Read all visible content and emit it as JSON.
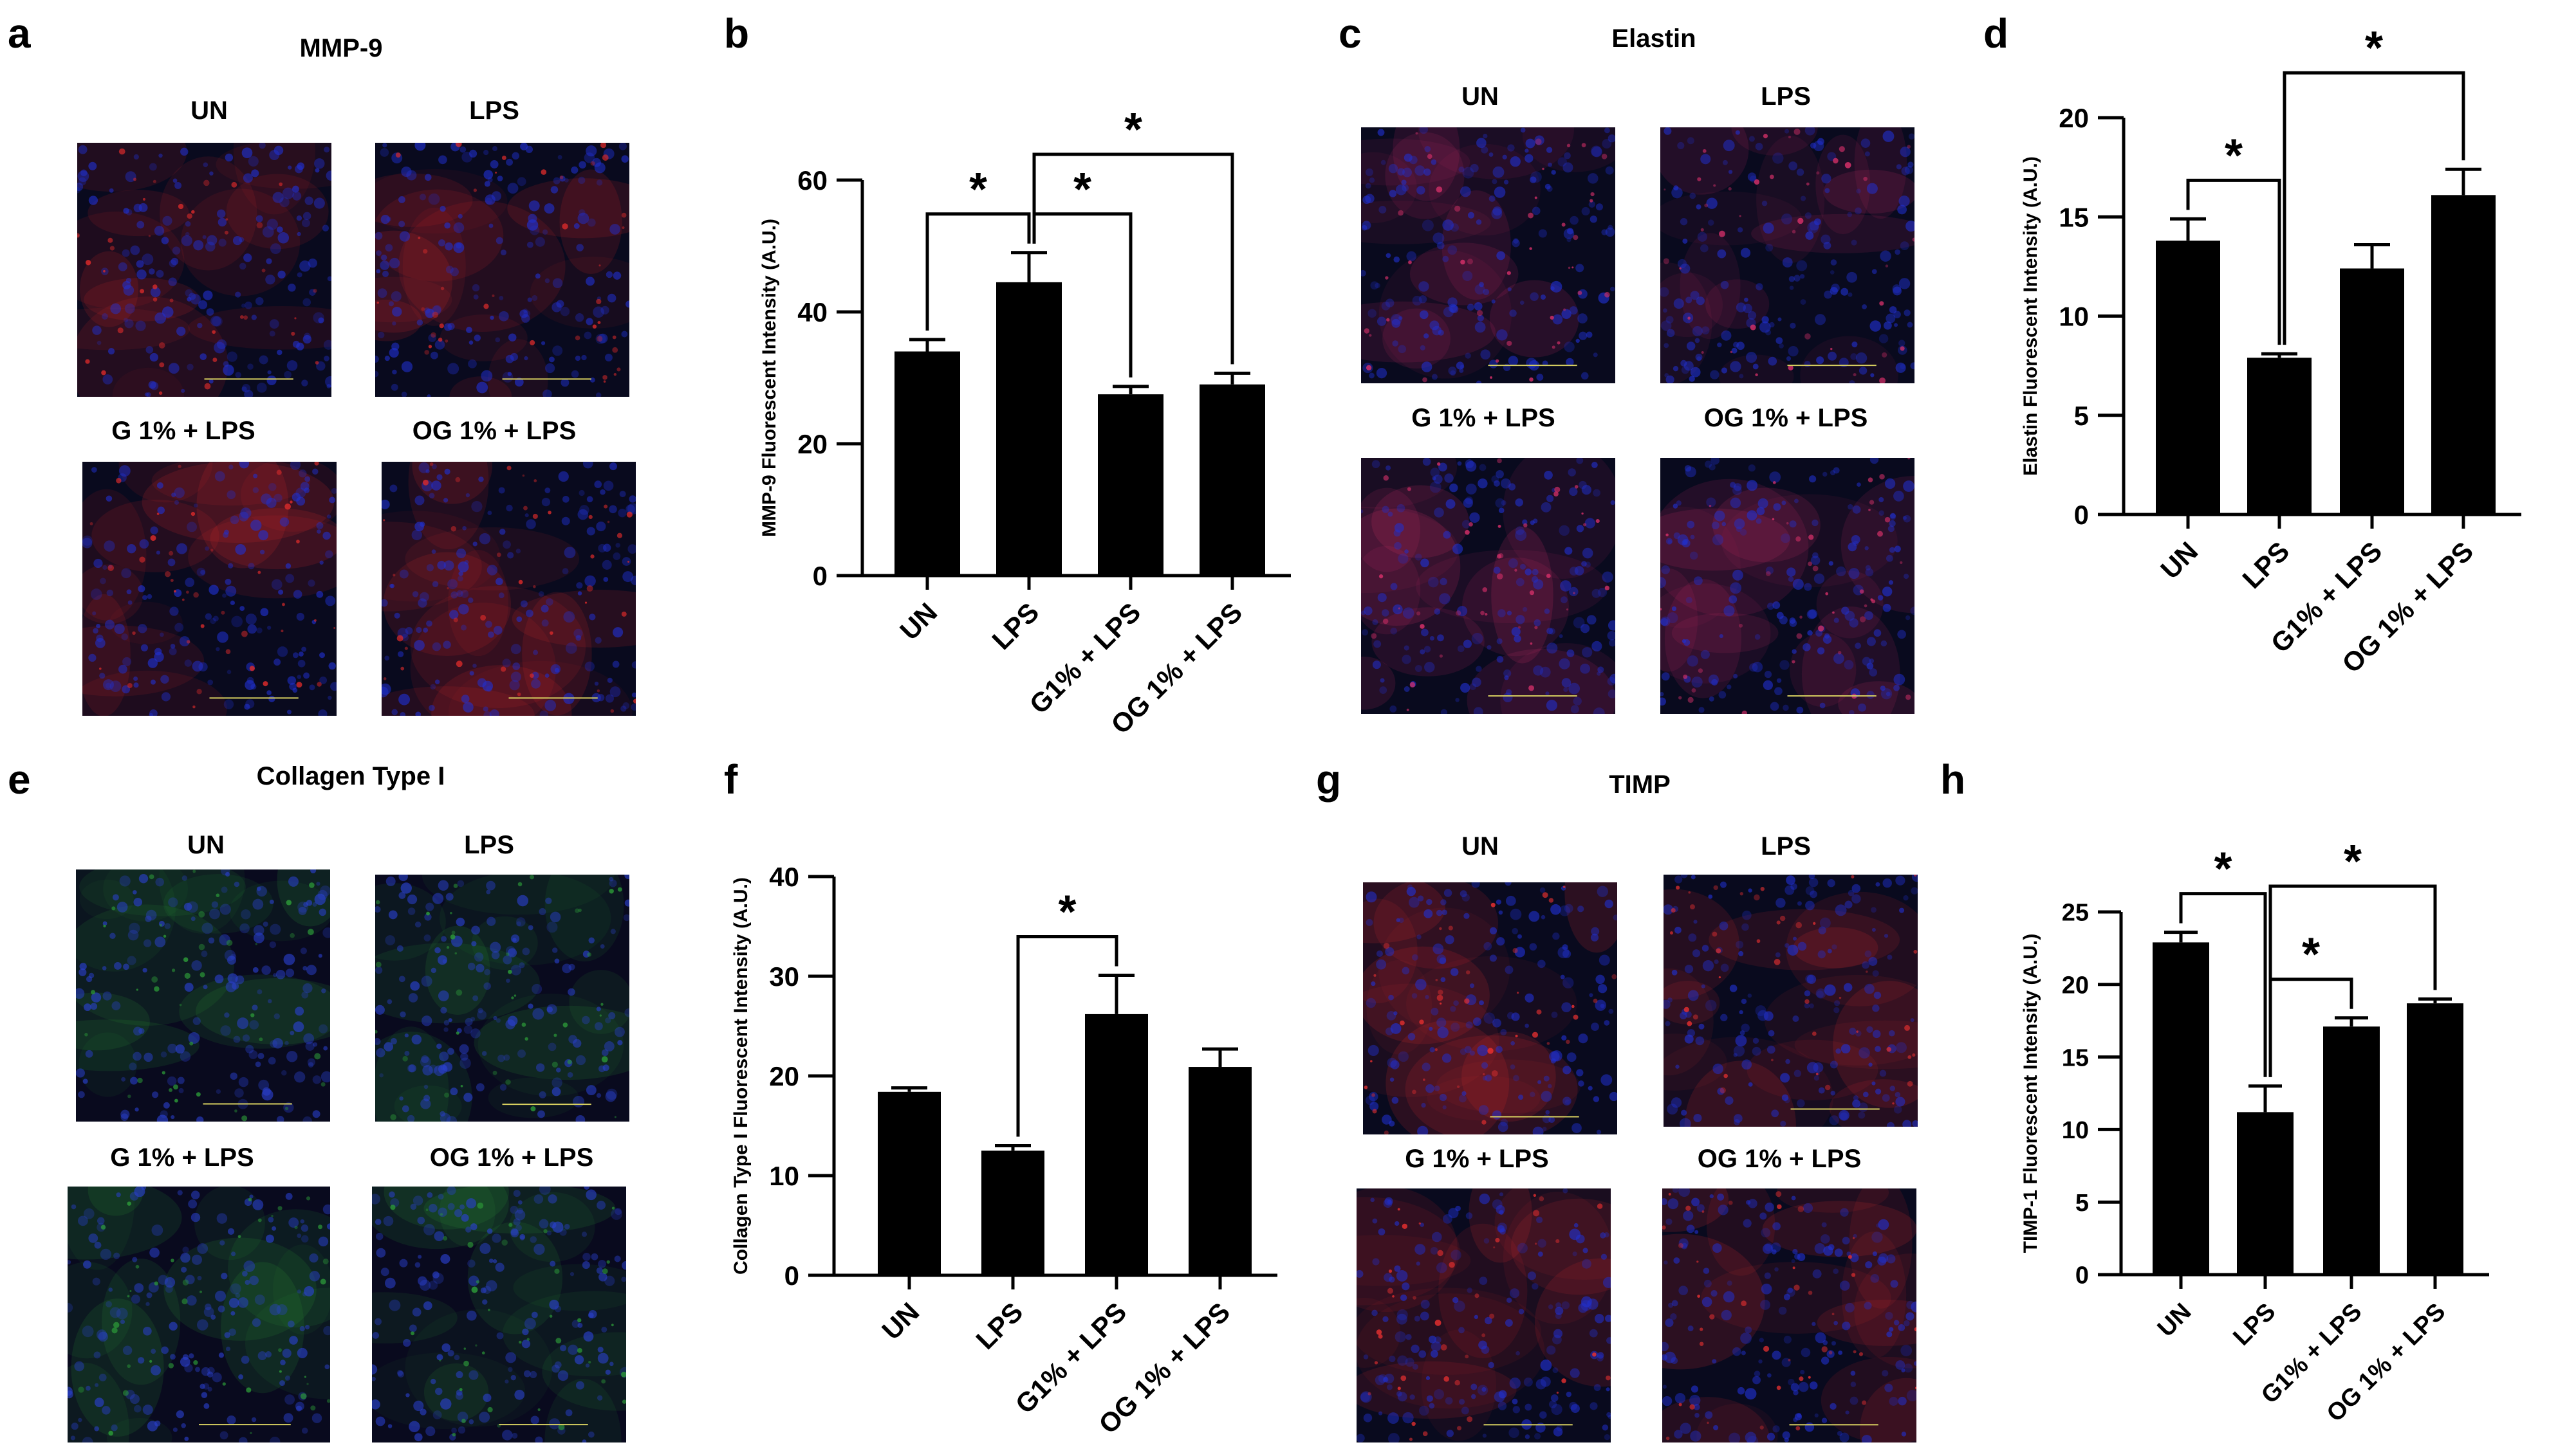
{
  "panels": [
    {
      "letter": "a",
      "title": "MMP-9",
      "image_labels": [
        "UN",
        "LPS",
        "G 1% + LPS",
        "OG 1% + LPS"
      ],
      "stain_colors": [
        "#d92a2a",
        "#2030d0"
      ]
    },
    {
      "letter": "b"
    },
    {
      "letter": "c",
      "title": "Elastin",
      "image_labels": [
        "UN",
        "LPS",
        "G 1% + LPS",
        "OG 1% + LPS"
      ],
      "stain_colors": [
        "#d8306a",
        "#2030d0"
      ]
    },
    {
      "letter": "d"
    },
    {
      "letter": "e",
      "title": "Collagen Type I",
      "image_labels": [
        "UN",
        "LPS",
        "G 1% + LPS",
        "OG 1% + LPS"
      ],
      "stain_colors": [
        "#2c9a38",
        "#2a40d0"
      ]
    },
    {
      "letter": "f"
    },
    {
      "letter": "g",
      "title": "TIMP",
      "image_labels": [
        "UN",
        "LPS",
        "G 1% + LPS",
        "OG 1% + LPS"
      ],
      "stain_colors": [
        "#e83030",
        "#2030d0"
      ]
    },
    {
      "letter": "h"
    }
  ],
  "chart_data": [
    {
      "type": "bar",
      "ylabel": "MMP-9 Fluorescent Intensity (A.U.)",
      "categories": [
        "UN",
        "LPS",
        "G1% + LPS",
        "OG 1% + LPS"
      ],
      "values": [
        34,
        44.5,
        27.5,
        29
      ],
      "errors": [
        1.8,
        4.5,
        1.2,
        1.7
      ],
      "ylim": [
        0,
        60
      ],
      "yticks": [
        0,
        20,
        40,
        60
      ],
      "significance": [
        {
          "from": 0,
          "to": 1,
          "label": "*"
        },
        {
          "from": 1,
          "to": 2,
          "label": "*"
        },
        {
          "from": 1,
          "to": 3,
          "label": "*"
        }
      ]
    },
    {
      "type": "bar",
      "ylabel": "Elastin Fluorescent Intensity (A.U.)",
      "categories": [
        "UN",
        "LPS",
        "G1% + LPS",
        "OG 1% + LPS"
      ],
      "values": [
        13.8,
        7.9,
        12.4,
        16.1
      ],
      "errors": [
        1.1,
        0.2,
        1.2,
        1.3
      ],
      "ylim": [
        0,
        20
      ],
      "yticks": [
        0,
        5,
        10,
        15,
        20
      ],
      "significance": [
        {
          "from": 0,
          "to": 1,
          "label": "*"
        },
        {
          "from": 1,
          "to": 3,
          "label": "*"
        }
      ]
    },
    {
      "type": "bar",
      "ylabel": "Collagen Type I Fluorescent Intensity (A.U.)",
      "categories": [
        "UN",
        "LPS",
        "G1% + LPS",
        "OG 1% + LPS"
      ],
      "values": [
        18.4,
        12.5,
        26.2,
        20.9
      ],
      "errors": [
        0.4,
        0.5,
        3.9,
        1.8
      ],
      "ylim": [
        0,
        40
      ],
      "yticks": [
        0,
        10,
        20,
        30,
        40
      ],
      "significance": [
        {
          "from": 1,
          "to": 2,
          "label": "*"
        }
      ]
    },
    {
      "type": "bar",
      "ylabel": "TIMP-1 Fluorescent Intensity (A.U.)",
      "categories": [
        "UN",
        "LPS",
        "G1% + LPS",
        "OG 1% + LPS"
      ],
      "values": [
        22.9,
        11.2,
        17.1,
        18.7
      ],
      "errors": [
        0.7,
        1.8,
        0.6,
        0.3
      ],
      "ylim": [
        0,
        25
      ],
      "yticks": [
        0,
        5,
        10,
        15,
        20,
        25
      ],
      "significance": [
        {
          "from": 0,
          "to": 1,
          "label": "*"
        },
        {
          "from": 1,
          "to": 2,
          "label": "*"
        },
        {
          "from": 1,
          "to": 3,
          "label": "*"
        }
      ]
    }
  ]
}
